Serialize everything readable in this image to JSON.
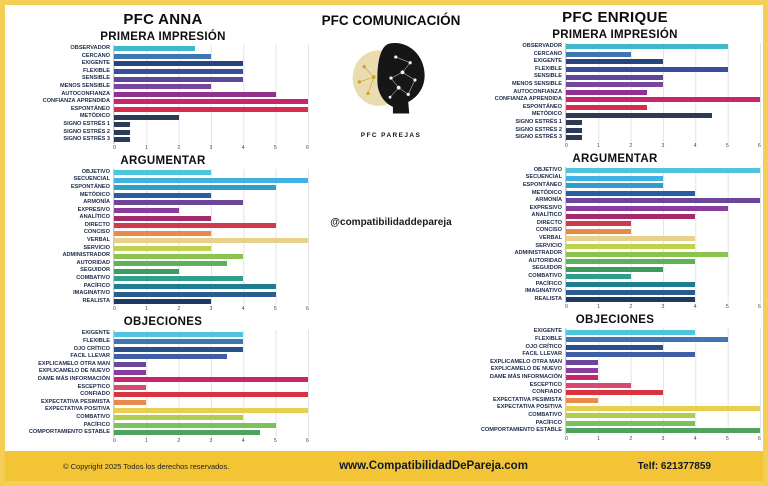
{
  "page": {
    "left_title": "PFC ANNA",
    "center_title": "PFC COMUNICACIÓN",
    "right_title": "PFC ENRIQUE",
    "handle": "@compatibilidaddepareja",
    "logo_text": "PFC PAREJAS"
  },
  "footer": {
    "copyright": "© Copyright 2025 Todos los derechos reservados.",
    "website": "www.CompatibilidadDePareja.com",
    "phone": "Telf: 621377859",
    "bg_color": "#F3C436"
  },
  "chart_data": [
    {
      "type": "bar",
      "orientation": "horizontal",
      "person": "ANNA",
      "title": "PRIMERA IMPRESIÓN",
      "categories": [
        "OBSERVADOR",
        "CERCANO",
        "EXIGENTE",
        "FLEXIBLE",
        "SENSIBLE",
        "MENOS SENSIBLE",
        "AUTOCONFIANZA",
        "CONFIANZA APRENDIDA",
        "ESPONTÁNEO",
        "METÓDICO",
        "SIGNO ESTRÉS 1",
        "SIGNO ESTRÉS 2",
        "SIGNO ESTRÉS 3"
      ],
      "values": [
        2.5,
        3,
        4,
        4,
        4,
        3,
        5,
        6,
        6,
        2,
        0.5,
        0.5,
        0.5
      ],
      "colors": [
        "#3FB8C9",
        "#3D76B3",
        "#27447F",
        "#3A4D9B",
        "#5E4699",
        "#7A4699",
        "#93308F",
        "#C9256E",
        "#D92A50",
        "#2B3A55",
        "#2B3A55",
        "#2B3A55",
        "#2B3A55"
      ],
      "xlim": [
        0,
        6
      ],
      "xticks": [
        0,
        1,
        2,
        3,
        4,
        5,
        6
      ],
      "grid": true
    },
    {
      "type": "bar",
      "orientation": "horizontal",
      "person": "ANNA",
      "title": "ARGUMENTAR",
      "categories": [
        "OBJETIVO",
        "SECUENCIAL",
        "ESPONTÁNEO",
        "METÓDICO",
        "ARMONÍA",
        "EXPRESIVO",
        "ANALÍTICO",
        "DIRECTO",
        "CONCISO",
        "VERBAL",
        "SERVICIO",
        "ADMINISTRADOR",
        "AUTORIDAD",
        "SEGUIDOR",
        "COMBATIVO",
        "PACÍFICO",
        "IMAGINATIVO",
        "REALISTA"
      ],
      "values": [
        3,
        6,
        5,
        3,
        4,
        2,
        3,
        5,
        3,
        6,
        3,
        4,
        3.5,
        2,
        4,
        5,
        5,
        3
      ],
      "colors": [
        "#4EC4DE",
        "#3EB3E2",
        "#2E9FC7",
        "#2C5CA0",
        "#6B4699",
        "#8A3D9E",
        "#A52A6B",
        "#CE3A4E",
        "#E98A4A",
        "#E9D18C",
        "#BFD14E",
        "#8CC34E",
        "#5BB25A",
        "#3B9D5C",
        "#2F9E8C",
        "#1F7D90",
        "#2C5C8F",
        "#1E3A60"
      ],
      "xlim": [
        0,
        6
      ],
      "xticks": [
        0,
        1,
        2,
        3,
        4,
        5,
        6
      ],
      "grid": true
    },
    {
      "type": "bar",
      "orientation": "horizontal",
      "person": "ANNA",
      "title": "OBJECIONES",
      "categories": [
        "EXIGENTE",
        "FLEXIBLE",
        "OJO CRÍTICO",
        "FACIL LLEVAR",
        "EXPLICAMELO OTRA MAN",
        "EXPLICAMELO DE NUEVO",
        "DAME MÁS INFORMACIÓN",
        "ESCEPTICO",
        "CONFIADO",
        "EXPECTATIVA PESIMISTA",
        "EXPECTATIVA POSITIVA",
        "COMBATIVO",
        "PACÍFICO",
        "COMPORTAMIENTO ESTABLE"
      ],
      "values": [
        4,
        4,
        4,
        3.5,
        1,
        1,
        6,
        1,
        6,
        1,
        6,
        4,
        5,
        4.5
      ],
      "colors": [
        "#4EC4DE",
        "#3D76B3",
        "#2B4E8C",
        "#3F5EA8",
        "#6B4699",
        "#8A3D9E",
        "#C9256E",
        "#D8496E",
        "#D8333E",
        "#E98A4A",
        "#E8D04E",
        "#AFCE4E",
        "#79C15A",
        "#4EA45E"
      ],
      "xlim": [
        0,
        6
      ],
      "xticks": [
        0,
        1,
        2,
        3,
        4,
        5,
        6
      ],
      "grid": true
    },
    {
      "type": "bar",
      "orientation": "horizontal",
      "person": "ENRIQUE",
      "title": "PRIMERA IMPRESIÓN",
      "categories": [
        "OBSERVADOR",
        "CERCANO",
        "EXIGENTE",
        "FLEXIBLE",
        "SENSIBLE",
        "MENOS SENSIBLE",
        "AUTOCONFIANZA",
        "CONFIANZA APRENDIDA",
        "ESPONTÁNEO",
        "METÓDICO",
        "SIGNO ESTRÉS 1",
        "SIGNO ESTRÉS 2",
        "SIGNO ESTRÉS 3"
      ],
      "values": [
        5,
        2,
        3,
        5,
        3,
        3,
        2.5,
        6,
        2.5,
        4.5,
        0.5,
        0.5,
        0.5
      ],
      "colors": [
        "#3FB8C9",
        "#3D76B3",
        "#27447F",
        "#3A4D9B",
        "#5E4699",
        "#7A4699",
        "#93308F",
        "#C9256E",
        "#D92A50",
        "#2B3A55",
        "#2B3A55",
        "#2B3A55",
        "#2B3A55"
      ],
      "xlim": [
        0,
        6
      ],
      "xticks": [
        0,
        1,
        2,
        3,
        4,
        5,
        6
      ],
      "grid": true
    },
    {
      "type": "bar",
      "orientation": "horizontal",
      "person": "ENRIQUE",
      "title": "ARGUMENTAR",
      "categories": [
        "OBJETIVO",
        "SECUENCIAL",
        "ESPONTÁNEO",
        "METÓDICO",
        "ARMONÍA",
        "EXPRESIVO",
        "ANALÍTICO",
        "DIRECTO",
        "CONCISO",
        "VERBAL",
        "SERVICIO",
        "ADMINISTRADOR",
        "AUTORIDAD",
        "SEGUIDOR",
        "COMBATIVO",
        "PACÍFICO",
        "IMAGINATIVO",
        "REALISTA"
      ],
      "values": [
        6,
        3,
        3,
        4,
        6,
        5,
        4,
        2,
        2,
        4,
        4,
        5,
        4,
        3,
        2,
        4,
        4,
        4
      ],
      "colors": [
        "#4EC4DE",
        "#3EB3E2",
        "#2E9FC7",
        "#2C5CA0",
        "#6B4699",
        "#8A3D9E",
        "#A52A6B",
        "#CE3A4E",
        "#E98A4A",
        "#E9D18C",
        "#BFD14E",
        "#8CC34E",
        "#5BB25A",
        "#3B9D5C",
        "#2F9E8C",
        "#1F7D90",
        "#2C5C8F",
        "#1E3A60"
      ],
      "xlim": [
        0,
        6
      ],
      "xticks": [
        0,
        1,
        2,
        3,
        4,
        5,
        6
      ],
      "grid": true
    },
    {
      "type": "bar",
      "orientation": "horizontal",
      "person": "ENRIQUE",
      "title": "OBJECIONES",
      "categories": [
        "EXIGENTE",
        "FLEXIBLE",
        "OJO CRÍTICO",
        "FACIL LLEVAR",
        "EXPLICAMELO OTRA MAN",
        "EXPLICAMELO DE NUEVO",
        "DAME MÁS INFORMACIÓN",
        "ESCEPTICO",
        "CONFIADO",
        "EXPECTATIVA PESIMISTA",
        "EXPECTATIVA POSITIVA",
        "COMBATIVO",
        "PACÍFICO",
        "COMPORTAMIENTO ESTABLE"
      ],
      "values": [
        4,
        5,
        3,
        4,
        1,
        1,
        1,
        2,
        3,
        1,
        6,
        4,
        4,
        6
      ],
      "colors": [
        "#4EC4DE",
        "#3D76B3",
        "#2B4E8C",
        "#3F5EA8",
        "#6B4699",
        "#8A3D9E",
        "#C9256E",
        "#D8496E",
        "#D8333E",
        "#E98A4A",
        "#E8D04E",
        "#AFCE4E",
        "#79C15A",
        "#4EA45E"
      ],
      "xlim": [
        0,
        6
      ],
      "xticks": [
        0,
        1,
        2,
        3,
        4,
        5,
        6
      ],
      "grid": true
    }
  ]
}
